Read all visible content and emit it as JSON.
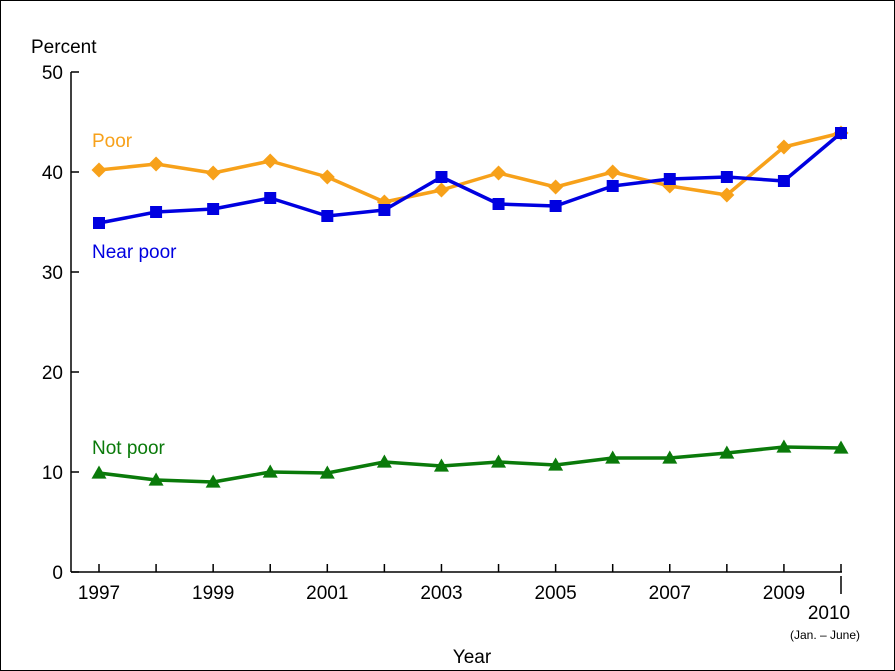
{
  "chart_data": {
    "type": "line",
    "ylabel": "Percent",
    "xlabel": "Year",
    "ylim": [
      0,
      50
    ],
    "yticks": [
      "0",
      "10",
      "20",
      "30",
      "40",
      "50"
    ],
    "x": [
      1997,
      1998,
      1999,
      2000,
      2001,
      2002,
      2003,
      2004,
      2005,
      2006,
      2007,
      2008,
      2009,
      2010
    ],
    "xticks": [
      {
        "x": 1997,
        "label": "1997"
      },
      {
        "x": 1999,
        "label": "1999"
      },
      {
        "x": 2001,
        "label": "2001"
      },
      {
        "x": 2003,
        "label": "2003"
      },
      {
        "x": 2005,
        "label": "2005"
      },
      {
        "x": 2007,
        "label": "2007"
      },
      {
        "x": 2009,
        "label": "2009"
      },
      {
        "x": 2010,
        "label": "2010",
        "sublabel": "(Jan. – June)"
      }
    ],
    "series": [
      {
        "name": "Poor",
        "color": "#f7a11a",
        "marker": "diamond",
        "values": [
          40.2,
          40.8,
          39.9,
          41.1,
          39.5,
          37.0,
          38.2,
          39.9,
          38.5,
          40.0,
          38.6,
          37.7,
          42.5,
          43.9
        ]
      },
      {
        "name": "Near poor",
        "color": "#0000e0",
        "marker": "square",
        "values": [
          34.9,
          36.0,
          36.3,
          37.4,
          35.6,
          36.2,
          39.5,
          36.8,
          36.6,
          38.6,
          39.3,
          39.5,
          39.1,
          43.9
        ]
      },
      {
        "name": "Not poor",
        "color": "#0a7a0a",
        "marker": "triangle",
        "values": [
          9.9,
          9.2,
          9.0,
          10.0,
          9.9,
          11.0,
          10.6,
          11.0,
          10.7,
          11.4,
          11.4,
          11.9,
          12.5,
          12.4
        ]
      }
    ]
  }
}
